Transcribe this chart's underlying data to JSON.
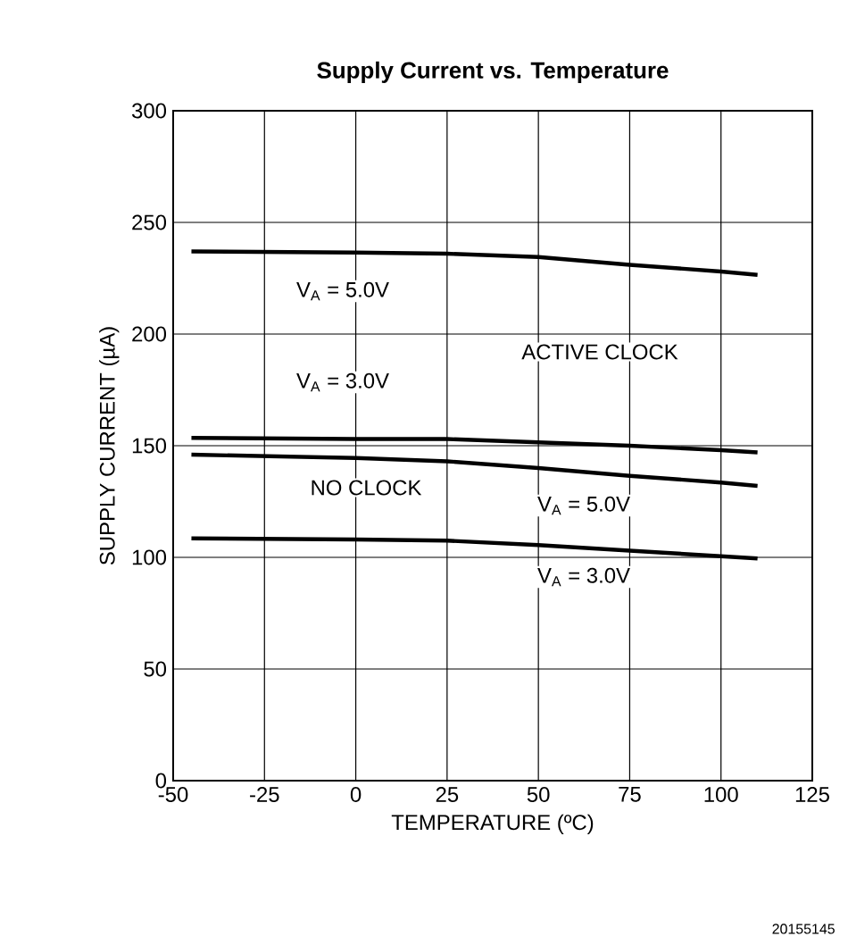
{
  "chart_data": {
    "type": "line",
    "title": "Supply Current vs. Temperature",
    "xlabel": "TEMPERATURE (ºC)",
    "ylabel": "SUPPLY CURRENT (µA)",
    "x": [
      -45,
      0,
      25,
      50,
      75,
      100,
      110
    ],
    "series": [
      {
        "color": "#000000",
        "values": [
          237,
          236.5,
          236,
          234.5,
          231,
          228,
          226.5
        ]
      },
      {
        "color": "#000000",
        "values": [
          153.5,
          153,
          153,
          151.5,
          150,
          148,
          147
        ]
      },
      {
        "color": "#000000",
        "values": [
          146,
          144.5,
          143,
          140,
          136.5,
          133.5,
          132
        ]
      },
      {
        "color": "#000000",
        "values": [
          108.5,
          108,
          107.5,
          105.5,
          103,
          100.5,
          99.5
        ]
      }
    ],
    "xlim": [
      -50,
      125
    ],
    "ylim": [
      0,
      300
    ],
    "xticks": [
      -50,
      -25,
      0,
      25,
      50,
      75,
      100,
      125
    ],
    "yticks": [
      0,
      50,
      100,
      150,
      200,
      250,
      300
    ],
    "grid": true,
    "marker": "none",
    "line_style": "solid",
    "annotations": [
      "V$_{A}$ = 5.0V",
      "V$_{A}$ = 3.0V",
      "ACTIVE CLOCK",
      "NO CLOCK",
      "V$_{A}$ = 5.0V",
      "V$_{A}$ = 3.0V",
      "20155145"
    ]
  }
}
